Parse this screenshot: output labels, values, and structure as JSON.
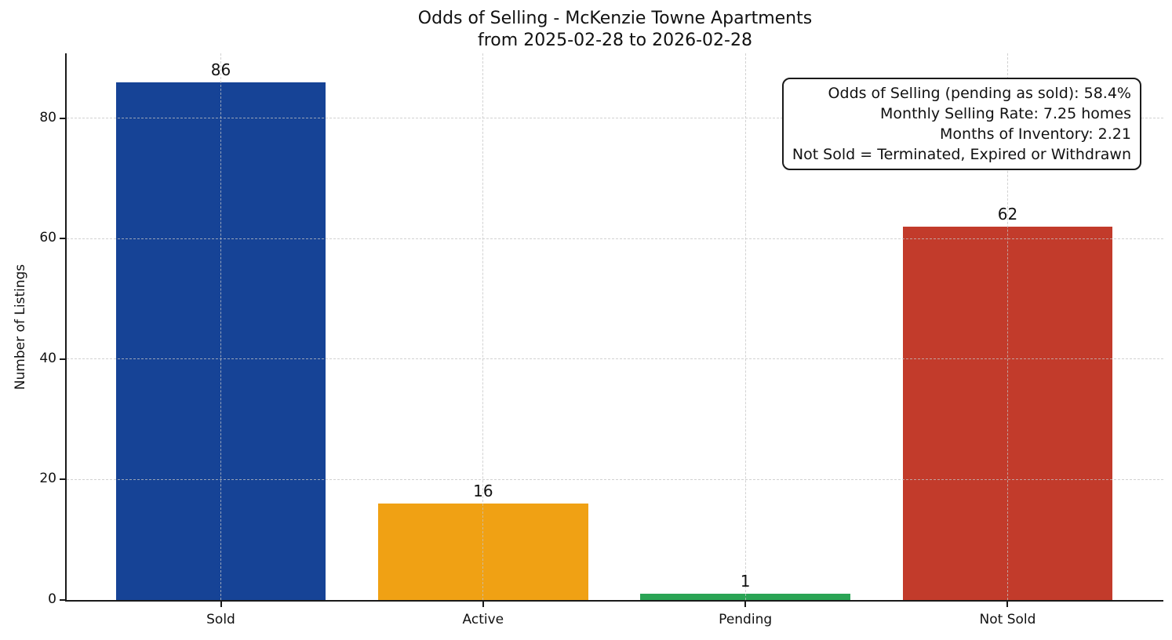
{
  "chart_data": {
    "type": "bar",
    "title": "Odds of Selling - McKenzie Towne Apartments",
    "subtitle": "from 2025-02-28 to 2026-02-28",
    "categories": [
      "Sold",
      "Active",
      "Pending",
      "Not Sold"
    ],
    "values": [
      86,
      16,
      1,
      62
    ],
    "value_labels": [
      "86",
      "16",
      "1",
      "62"
    ],
    "bar_colors": [
      "#164396",
      "#f0a114",
      "#2aa455",
      "#c23b2b"
    ],
    "xlabel": "",
    "ylabel": "Number of Listings",
    "ylim": [
      0,
      90.8
    ],
    "yticks": [
      0,
      20,
      40,
      60,
      80
    ],
    "grid": true,
    "grid_style": "dashed",
    "legend": "none",
    "annotation_box": {
      "position": "top-right",
      "lines": [
        "Odds of Selling (pending as sold): 58.4%",
        "Monthly Selling Rate: 7.25 homes",
        "Months of Inventory: 2.21",
        "Not Sold = Terminated, Expired or Withdrawn"
      ]
    }
  }
}
